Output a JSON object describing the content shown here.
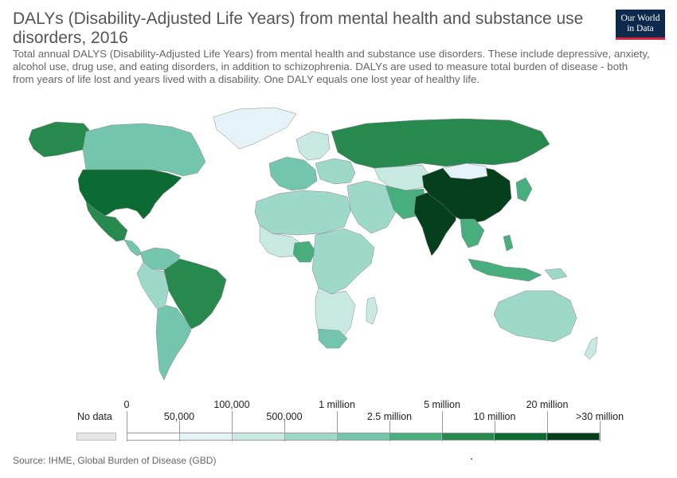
{
  "header": {
    "title": "DALYs (Disability-Adjusted Life Years) from mental health and substance use disorders, 2016",
    "subtitle": "Total annual DALYS (Disability-Adjusted Life Years) from mental health and substance use disorders. These include depressive, anxiety, alcohol use, drug use, and eating disorders, in addition to schizophrenia. DALYs are used to measure total burden of disease - both from years of life lost and years lived with a disability. One DALY equals one lost year of healthy life.",
    "logo_line1": "Our World",
    "logo_line2": "in Data"
  },
  "legend": {
    "no_data_label": "No data",
    "no_data_color": "#e6e6e6",
    "labels_top": [
      "0",
      "100,000",
      "1 million",
      "5 million",
      "20 million"
    ],
    "labels_bottom": [
      "50,000",
      "500,000",
      "2.5 million",
      "10 million",
      ">30 million"
    ],
    "bins": [
      {
        "color": "#ffffff"
      },
      {
        "color": "#e5f2f7"
      },
      {
        "color": "#c8e9e2"
      },
      {
        "color": "#9dd8c8"
      },
      {
        "color": "#73c6ad"
      },
      {
        "color": "#48ae7e"
      },
      {
        "color": "#27894d"
      },
      {
        "color": "#0b6b33"
      },
      {
        "color": "#063f1b"
      }
    ]
  },
  "map": {
    "ocean_color": "#ffffff",
    "regions": [
      {
        "name": "Canada",
        "bin": 4
      },
      {
        "name": "United States",
        "bin": 7
      },
      {
        "name": "Alaska",
        "bin": 6
      },
      {
        "name": "Greenland",
        "bin": 1
      },
      {
        "name": "Mexico",
        "bin": 6
      },
      {
        "name": "Brazil",
        "bin": 6
      },
      {
        "name": "Argentina",
        "bin": 4
      },
      {
        "name": "Russia",
        "bin": 6
      },
      {
        "name": "China",
        "bin": 8
      },
      {
        "name": "India",
        "bin": 8
      },
      {
        "name": "Australia",
        "bin": 3
      },
      {
        "name": "Nigeria",
        "bin": 5
      },
      {
        "name": "South Africa",
        "bin": 4
      },
      {
        "name": "Kazakhstan",
        "bin": 2
      },
      {
        "name": "Mongolia",
        "bin": 1
      },
      {
        "name": "Indonesia",
        "bin": 5
      }
    ]
  },
  "footer": {
    "source": "Source: IHME, Global Burden of Disease (GBD)"
  }
}
